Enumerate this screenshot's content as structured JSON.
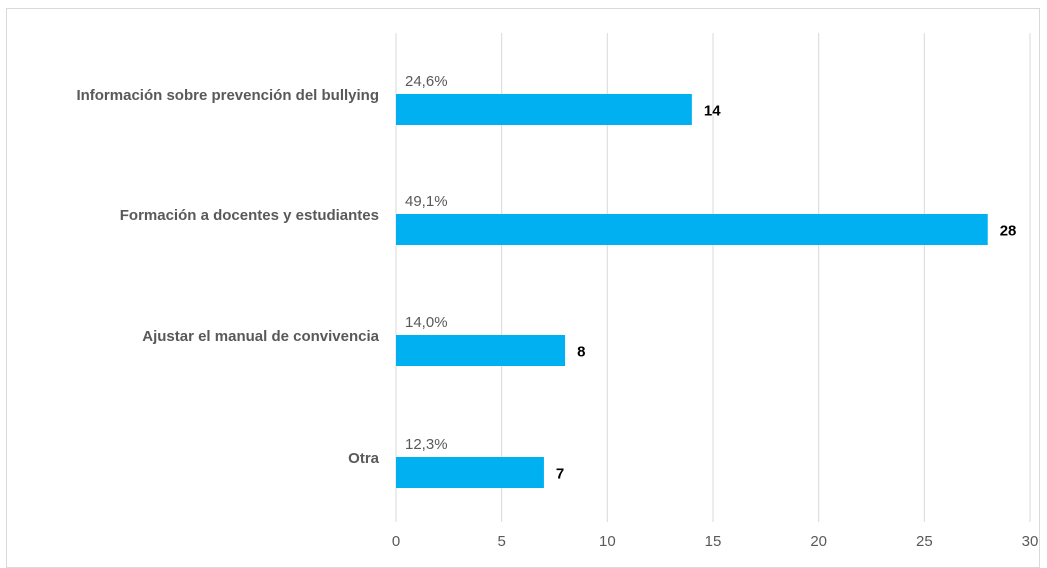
{
  "chart_data": {
    "type": "bar",
    "orientation": "horizontal",
    "title": "",
    "xlabel": "",
    "ylabel": "",
    "categories": [
      "Información sobre prevención del bullying",
      "Formación a docentes y estudiantes",
      "Ajustar el manual de convivencia",
      "Otra"
    ],
    "values": [
      14,
      28,
      8,
      7
    ],
    "percent_labels": [
      "24,6%",
      "49,1%",
      "14,0%",
      "12,3%"
    ],
    "value_labels": [
      "14",
      "28",
      "8",
      "7"
    ],
    "xlim": [
      0,
      30
    ],
    "x_ticks": [
      "0",
      "5",
      "10",
      "15",
      "20",
      "25",
      "30"
    ],
    "grid": true,
    "legend": "none",
    "bar_color": "#00b0f0",
    "gridline_color": "#d9d9d9"
  }
}
